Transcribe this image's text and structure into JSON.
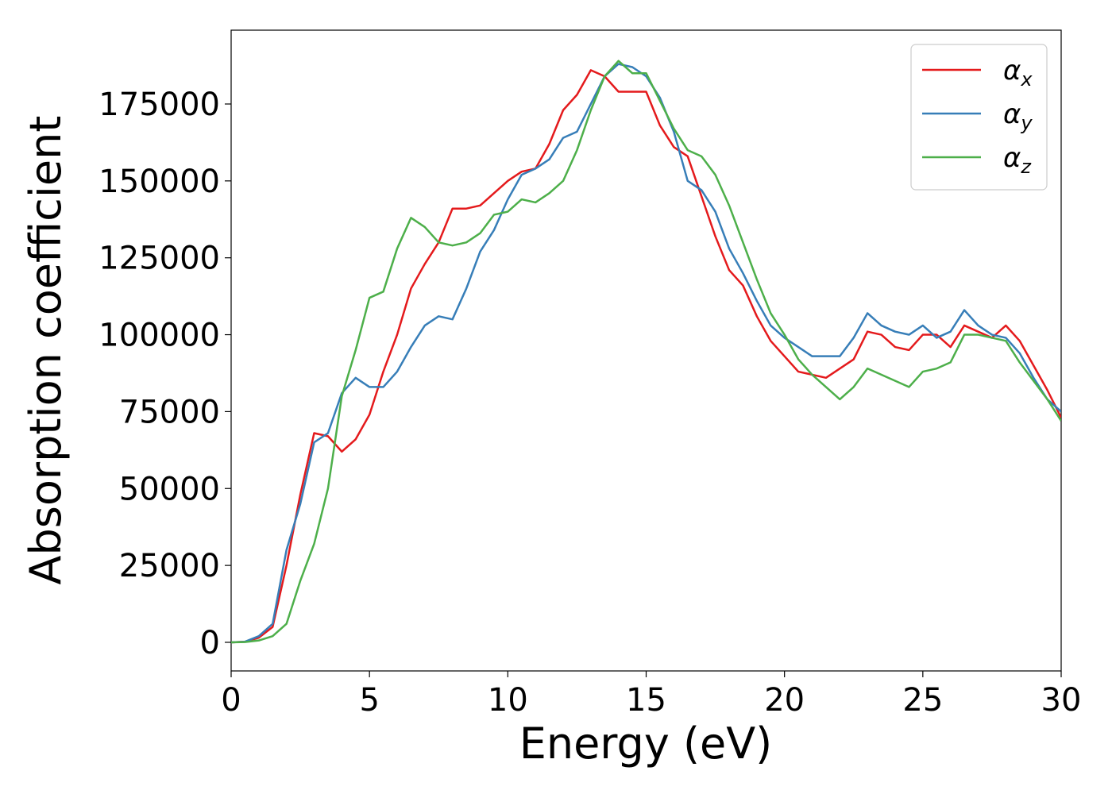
{
  "chart_data": {
    "type": "line",
    "xlabel": "Energy (eV)",
    "ylabel": "Absorption coefficient",
    "x": [
      0,
      0.5,
      1,
      1.5,
      2,
      2.5,
      3,
      3.5,
      4,
      4.5,
      5,
      5.5,
      6,
      6.5,
      7,
      7.5,
      8,
      8.5,
      9,
      9.5,
      10,
      10.5,
      11,
      11.5,
      12,
      12.5,
      13,
      13.5,
      14,
      14.5,
      15,
      15.5,
      16,
      16.5,
      17,
      17.5,
      18,
      18.5,
      19,
      19.5,
      20,
      20.5,
      21,
      21.5,
      22,
      22.5,
      23,
      23.5,
      24,
      24.5,
      25,
      25.5,
      26,
      26.5,
      27,
      27.5,
      28,
      28.5,
      29,
      29.5,
      30
    ],
    "series": [
      {
        "name": "αx",
        "color": "#e41a1c",
        "values": [
          0,
          200,
          1500,
          5000,
          25000,
          48000,
          68000,
          67000,
          62000,
          66000,
          74000,
          88000,
          100000,
          115000,
          123000,
          130000,
          141000,
          141000,
          142000,
          146000,
          150000,
          153000,
          154000,
          162000,
          173000,
          178000,
          186000,
          184000,
          179000,
          179000,
          179000,
          168000,
          161000,
          158000,
          145000,
          132000,
          121000,
          116000,
          106000,
          98000,
          93000,
          88000,
          87000,
          86000,
          89000,
          92000,
          101000,
          100000,
          96000,
          95000,
          100000,
          100000,
          96000,
          103000,
          101000,
          99000,
          103000,
          98000,
          90000,
          82000,
          73000
        ]
      },
      {
        "name": "αy",
        "color": "#377eb8",
        "values": [
          0,
          200,
          2000,
          6000,
          30000,
          45000,
          65000,
          68000,
          81000,
          86000,
          83000,
          83000,
          88000,
          96000,
          103000,
          106000,
          105000,
          115000,
          127000,
          134000,
          144000,
          152000,
          154000,
          157000,
          164000,
          166000,
          175000,
          184000,
          188000,
          187000,
          184000,
          177000,
          166000,
          150000,
          147000,
          140000,
          128000,
          120000,
          111000,
          103000,
          99000,
          96000,
          93000,
          93000,
          93000,
          99000,
          107000,
          103000,
          101000,
          100000,
          103000,
          99000,
          101000,
          108000,
          103000,
          100000,
          99000,
          94000,
          86000,
          79000,
          75000
        ]
      },
      {
        "name": "αz",
        "color": "#4daf4a",
        "values": [
          0,
          100,
          600,
          2000,
          6000,
          20000,
          32000,
          50000,
          80000,
          95000,
          112000,
          114000,
          128000,
          138000,
          135000,
          130000,
          129000,
          130000,
          133000,
          139000,
          140000,
          144000,
          143000,
          146000,
          150000,
          160000,
          173000,
          184000,
          189000,
          185000,
          185000,
          176000,
          167000,
          160000,
          158000,
          152000,
          142000,
          130000,
          118000,
          107000,
          100000,
          92000,
          87000,
          83000,
          79000,
          83000,
          89000,
          87000,
          85000,
          83000,
          88000,
          89000,
          91000,
          100000,
          100000,
          99000,
          98000,
          91000,
          85000,
          79000,
          72000
        ]
      }
    ],
    "xlim": [
      0,
      30
    ],
    "xticks": [
      0,
      5,
      10,
      15,
      20,
      25,
      30
    ],
    "ylim": [
      -9300,
      199000
    ],
    "yticks": [
      0,
      25000,
      50000,
      75000,
      100000,
      125000,
      150000,
      175000
    ],
    "grid": false,
    "legend": "upper right"
  }
}
